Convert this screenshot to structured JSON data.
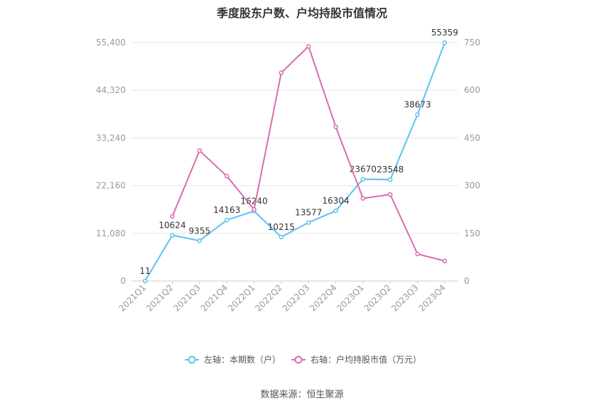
{
  "title": "季度股东户数、户均持股市值情况",
  "source": "数据来源：恒生聚源",
  "colors": {
    "left_series": "#5bc2f0",
    "right_series": "#d96bb0",
    "grid": "#e6e6e6",
    "tick": "#999999"
  },
  "chart_data": {
    "type": "line",
    "title": "季度股东户数、户均持股市值情况",
    "categories": [
      "2021Q1",
      "2021Q2",
      "2021Q3",
      "2021Q4",
      "2022Q1",
      "2022Q2",
      "2022Q3",
      "2022Q4",
      "2023Q1",
      "2023Q2",
      "2023Q3",
      "2023Q4"
    ],
    "left_axis": {
      "ylim": [
        0,
        55400
      ],
      "ticks": [
        0,
        11080,
        22160,
        33240,
        44320,
        55400
      ],
      "tick_labels": [
        "0",
        "11,080",
        "22,160",
        "33,240",
        "44,320",
        "55,400"
      ]
    },
    "right_axis": {
      "ylim": [
        0,
        750
      ],
      "ticks": [
        0,
        150,
        300,
        450,
        600,
        750
      ],
      "tick_labels": [
        "0",
        "150",
        "300",
        "450",
        "600",
        "750"
      ]
    },
    "grid": true,
    "legend_position": "bottom",
    "series": [
      {
        "name": "左轴：本期数（户）",
        "axis": "left",
        "values": [
          11,
          10624,
          9355,
          14163,
          16240,
          10215,
          13577,
          16304,
          23670,
          23548,
          38673,
          55359
        ],
        "labels": [
          "11",
          "10624",
          "9355",
          "14163",
          "16240",
          "10215",
          "13577",
          "16304",
          "23670",
          "23548",
          "38673",
          "55359"
        ]
      },
      {
        "name": "右轴：户均持股市值（万元）",
        "axis": "right",
        "values": [
          null,
          203,
          410,
          330,
          225,
          655,
          738,
          485,
          260,
          272,
          85,
          63
        ]
      }
    ]
  }
}
